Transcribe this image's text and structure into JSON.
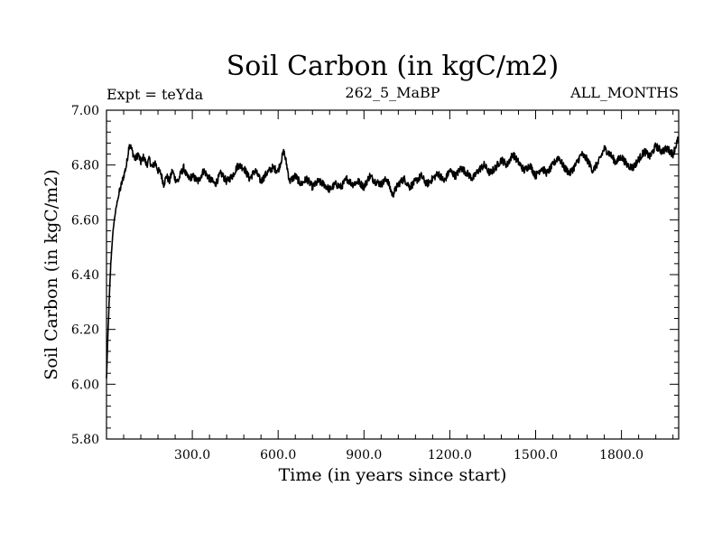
{
  "chart_data": {
    "type": "line",
    "title": "Soil Carbon (in kgC/m2)",
    "subtitle_left": "Expt = teYda",
    "subtitle_center": "262_5_MaBP",
    "subtitle_right": "ALL_MONTHS",
    "xlabel": "Time (in years since start)",
    "ylabel": "Soil Carbon (in kgC/m2)",
    "xlim": [
      0,
      2000
    ],
    "ylim": [
      5.8,
      7.0
    ],
    "x_ticks": [
      300,
      600,
      900,
      1200,
      1500,
      1800
    ],
    "x_tick_labels": [
      "300.0",
      "600.0",
      "900.0",
      "1200.0",
      "1500.0",
      "1800.0"
    ],
    "y_ticks": [
      5.8,
      6.0,
      6.2,
      6.4,
      6.6,
      6.8,
      7.0
    ],
    "y_tick_labels": [
      "5.80",
      "6.00",
      "6.20",
      "6.40",
      "6.60",
      "6.80",
      "7.00"
    ],
    "series": [
      {
        "name": "Soil Carbon",
        "color": "#000000",
        "x": [
          0,
          5,
          10,
          15,
          20,
          25,
          30,
          40,
          50,
          60,
          70,
          80,
          90,
          100,
          110,
          120,
          130,
          140,
          150,
          160,
          170,
          180,
          190,
          200,
          210,
          220,
          230,
          240,
          250,
          260,
          270,
          280,
          290,
          300,
          320,
          340,
          360,
          380,
          400,
          420,
          440,
          460,
          480,
          500,
          520,
          540,
          560,
          580,
          600,
          620,
          630,
          640,
          660,
          680,
          700,
          720,
          740,
          760,
          780,
          800,
          820,
          840,
          860,
          880,
          900,
          920,
          940,
          960,
          980,
          1000,
          1020,
          1040,
          1060,
          1080,
          1100,
          1120,
          1140,
          1160,
          1180,
          1200,
          1220,
          1240,
          1260,
          1280,
          1300,
          1320,
          1340,
          1360,
          1380,
          1400,
          1420,
          1440,
          1460,
          1480,
          1500,
          1520,
          1540,
          1560,
          1580,
          1600,
          1620,
          1640,
          1660,
          1680,
          1700,
          1720,
          1740,
          1760,
          1780,
          1800,
          1820,
          1840,
          1860,
          1880,
          1900,
          1920,
          1940,
          1960,
          1980,
          2000
        ],
        "values": [
          6.02,
          6.18,
          6.32,
          6.44,
          6.52,
          6.58,
          6.62,
          6.68,
          6.72,
          6.76,
          6.8,
          6.88,
          6.85,
          6.82,
          6.84,
          6.81,
          6.83,
          6.8,
          6.82,
          6.79,
          6.81,
          6.78,
          6.77,
          6.73,
          6.76,
          6.74,
          6.78,
          6.75,
          6.74,
          6.77,
          6.79,
          6.76,
          6.75,
          6.76,
          6.74,
          6.78,
          6.75,
          6.73,
          6.77,
          6.74,
          6.76,
          6.8,
          6.79,
          6.75,
          6.78,
          6.74,
          6.77,
          6.79,
          6.78,
          6.85,
          6.8,
          6.74,
          6.76,
          6.73,
          6.75,
          6.72,
          6.74,
          6.73,
          6.71,
          6.73,
          6.72,
          6.75,
          6.73,
          6.74,
          6.72,
          6.76,
          6.74,
          6.73,
          6.75,
          6.69,
          6.73,
          6.75,
          6.72,
          6.74,
          6.76,
          6.73,
          6.75,
          6.77,
          6.74,
          6.78,
          6.76,
          6.79,
          6.77,
          6.75,
          6.78,
          6.8,
          6.77,
          6.79,
          6.82,
          6.8,
          6.84,
          6.81,
          6.78,
          6.8,
          6.76,
          6.79,
          6.77,
          6.8,
          6.83,
          6.79,
          6.77,
          6.8,
          6.84,
          6.82,
          6.78,
          6.81,
          6.86,
          6.84,
          6.81,
          6.83,
          6.8,
          6.79,
          6.82,
          6.85,
          6.83,
          6.87,
          6.85,
          6.86,
          6.84,
          6.9
        ]
      }
    ]
  }
}
